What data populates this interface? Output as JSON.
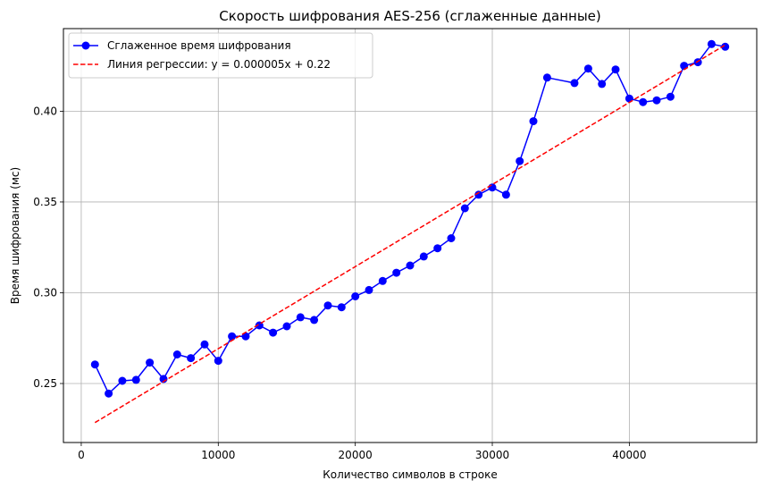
{
  "chart_data": {
    "type": "line",
    "title": "Скорость шифрования AES-256 (сглаженные данные)",
    "xlabel": "Количество символов в строке",
    "ylabel": "Время шифрования (мс)",
    "xlim": [
      -1300,
      49300
    ],
    "ylim": [
      0.2175,
      0.4455
    ],
    "xticks": [
      0,
      10000,
      20000,
      30000,
      40000
    ],
    "xtick_labels": [
      "0",
      "10000",
      "20000",
      "30000",
      "40000"
    ],
    "yticks": [
      0.25,
      0.3,
      0.35,
      0.4
    ],
    "ytick_labels": [
      "0.25",
      "0.30",
      "0.35",
      "0.40"
    ],
    "grid": true,
    "legend_position": "top-left",
    "series": [
      {
        "name": "Сглаженное время шифрования",
        "color": "#0000ff",
        "style": "solid",
        "marker": "circle",
        "x": [
          1000,
          2000,
          3000,
          4000,
          5000,
          6000,
          7000,
          8000,
          9000,
          10000,
          11000,
          12000,
          13000,
          14000,
          15000,
          16000,
          17000,
          18000,
          19000,
          20000,
          21000,
          22000,
          23000,
          24000,
          25000,
          26000,
          27000,
          28000,
          29000,
          30000,
          31000,
          32000,
          33000,
          34000,
          36000,
          37000,
          38000,
          39000,
          40000,
          41000,
          42000,
          43000,
          44000,
          45000,
          46000,
          47000
        ],
        "y": [
          0.2605,
          0.2445,
          0.2515,
          0.252,
          0.2615,
          0.2525,
          0.266,
          0.264,
          0.2715,
          0.2625,
          0.276,
          0.276,
          0.282,
          0.278,
          0.2815,
          0.2865,
          0.285,
          0.293,
          0.292,
          0.298,
          0.3015,
          0.3065,
          0.311,
          0.315,
          0.32,
          0.3245,
          0.33,
          0.3465,
          0.354,
          0.358,
          0.354,
          0.3725,
          0.3945,
          0.4185,
          0.4155,
          0.4235,
          0.415,
          0.423,
          0.407,
          0.405,
          0.406,
          0.408,
          0.425,
          0.427,
          0.437,
          0.4355
        ]
      },
      {
        "name": "Линия регрессии: y = 0.000005x + 0.22",
        "color": "#ff0000",
        "style": "dashed",
        "marker": "none",
        "x": [
          1000,
          47000
        ],
        "y": [
          0.2285,
          0.4365
        ]
      }
    ]
  }
}
